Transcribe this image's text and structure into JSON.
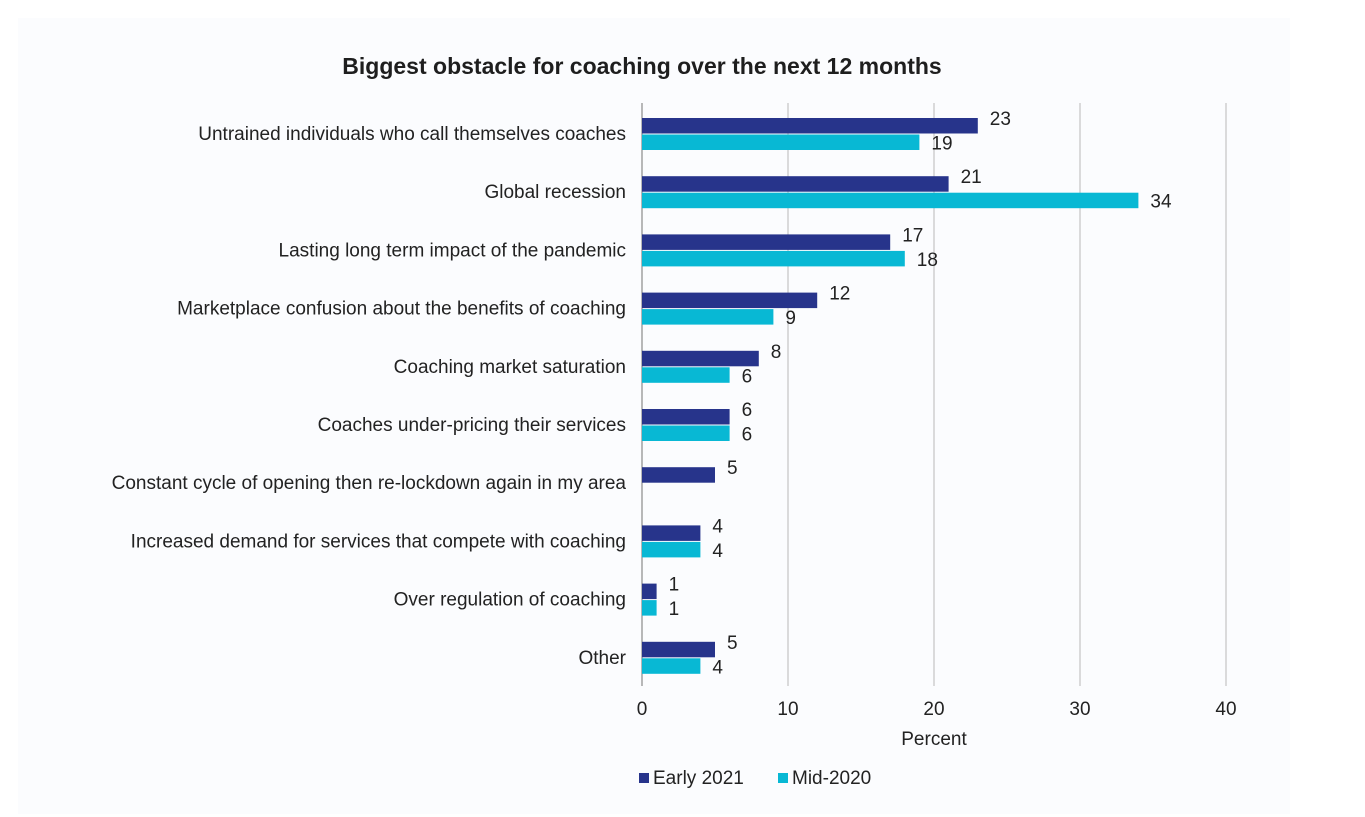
{
  "chart_data": {
    "type": "bar",
    "orientation": "horizontal",
    "title": "Biggest obstacle for coaching over the next 12 months",
    "xlabel": "Percent",
    "ylabel": "",
    "xlim": [
      0,
      40
    ],
    "xticks": [
      0,
      10,
      20,
      30,
      40
    ],
    "grid": true,
    "legend_position": "bottom",
    "categories": [
      "Untrained individuals who call themselves coaches",
      "Global recession",
      "Lasting long term impact of the pandemic",
      "Marketplace confusion about the benefits of coaching",
      "Coaching market saturation",
      "Coaches under-pricing their services",
      "Constant cycle of opening then re-lockdown again in my area",
      "Increased demand for services that compete with coaching",
      "Over regulation of coaching",
      "Other"
    ],
    "series": [
      {
        "name": "Early 2021",
        "color": "#27348b",
        "values": [
          23,
          21,
          17,
          12,
          8,
          6,
          5,
          4,
          1,
          5
        ],
        "labels": [
          "23",
          "21",
          "17",
          "12",
          "8",
          "6",
          "5",
          "4",
          "1",
          "5"
        ]
      },
      {
        "name": "Mid-2020",
        "color": "#08b8d4",
        "values": [
          19,
          34,
          18,
          9,
          6,
          6,
          null,
          4,
          1,
          4
        ],
        "labels": [
          "19",
          "34",
          "18",
          "9",
          "6",
          "6",
          "",
          "4",
          "1",
          "4"
        ]
      }
    ]
  }
}
